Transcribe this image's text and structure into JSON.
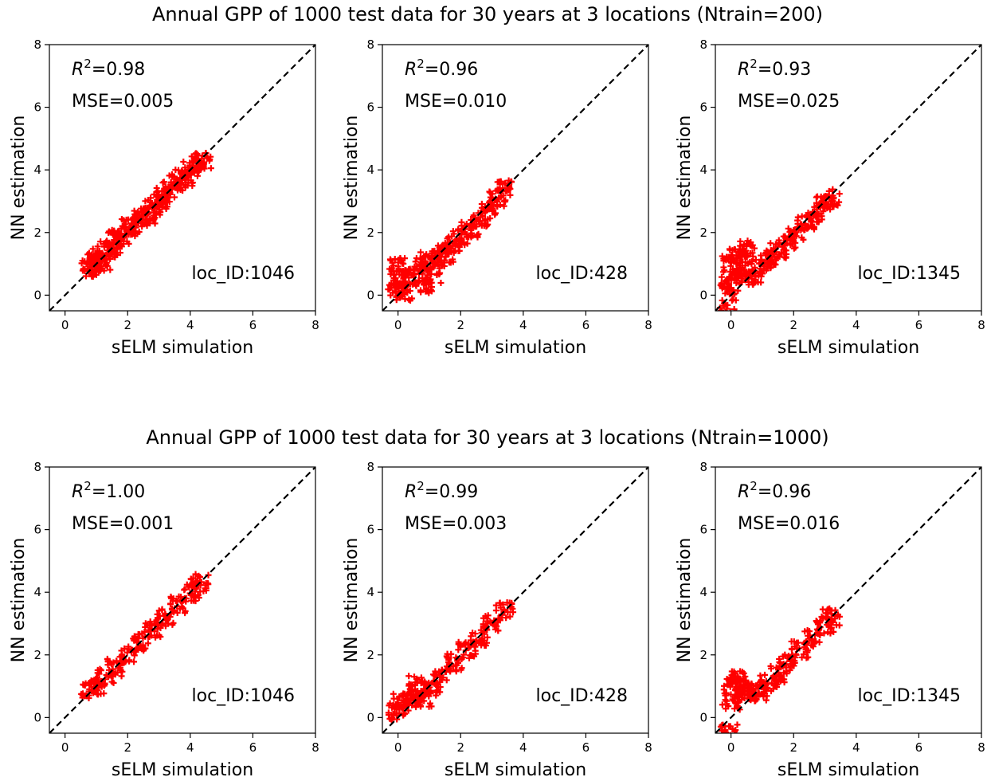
{
  "figure": {
    "titles": [
      "Annual GPP of 1000 test data for 30 years at 3 locations (Ntrain=200)",
      "Annual GPP of 1000 test data for 30 years at 3 locations (Ntrain=1000)"
    ]
  },
  "chart_data": [
    {
      "type": "scatter",
      "row": 0,
      "col": 0,
      "xlabel": "sELM simulation",
      "ylabel": "NN estimation",
      "xlim": [
        -0.5,
        8
      ],
      "ylim": [
        -0.5,
        8
      ],
      "xticks": [
        0,
        2,
        4,
        6,
        8
      ],
      "yticks": [
        0,
        2,
        4,
        6,
        8
      ],
      "r2": "=0.98",
      "mse": "MSE=0.005",
      "location": "loc_ID:1046",
      "marker_color": "#ff0000",
      "identity_line": true,
      "points": [
        [
          0.75,
          1.0
        ],
        [
          0.9,
          0.85
        ],
        [
          1.0,
          1.2
        ],
        [
          1.2,
          1.05
        ],
        [
          1.3,
          1.5
        ],
        [
          1.5,
          1.45
        ],
        [
          1.6,
          1.8
        ],
        [
          1.8,
          1.8
        ],
        [
          2.0,
          2.15
        ],
        [
          2.2,
          2.2
        ],
        [
          2.4,
          2.5
        ],
        [
          2.6,
          2.55
        ],
        [
          2.8,
          2.8
        ],
        [
          3.0,
          2.95
        ],
        [
          3.2,
          3.2
        ],
        [
          3.4,
          3.35
        ],
        [
          3.6,
          3.6
        ],
        [
          3.8,
          3.75
        ],
        [
          4.0,
          4.0
        ],
        [
          4.2,
          4.15
        ],
        [
          4.4,
          4.3
        ]
      ]
    },
    {
      "type": "scatter",
      "row": 0,
      "col": 1,
      "xlabel": "sELM simulation",
      "ylabel": "NN estimation",
      "xlim": [
        -0.5,
        8
      ],
      "ylim": [
        -0.5,
        8
      ],
      "xticks": [
        0,
        2,
        4,
        6,
        8
      ],
      "yticks": [
        0,
        2,
        4,
        6,
        8
      ],
      "r2": "=0.96",
      "mse": "MSE=0.010",
      "location": "loc_ID:428",
      "marker_color": "#ff0000",
      "identity_line": true,
      "points": [
        [
          -0.05,
          0.2
        ],
        [
          0.0,
          0.9
        ],
        [
          0.05,
          0.5
        ],
        [
          0.2,
          0.1
        ],
        [
          0.4,
          0.6
        ],
        [
          0.6,
          0.9
        ],
        [
          0.8,
          0.3
        ],
        [
          1.0,
          1.1
        ],
        [
          1.1,
          0.6
        ],
        [
          1.3,
          1.2
        ],
        [
          1.5,
          1.3
        ],
        [
          1.7,
          1.6
        ],
        [
          2.0,
          1.85
        ],
        [
          2.3,
          2.1
        ],
        [
          2.6,
          2.4
        ],
        [
          2.9,
          2.7
        ],
        [
          3.2,
          3.1
        ],
        [
          3.4,
          3.4
        ]
      ]
    },
    {
      "type": "scatter",
      "row": 0,
      "col": 2,
      "xlabel": "sELM simulation",
      "ylabel": "NN estimation",
      "xlim": [
        -0.5,
        8
      ],
      "ylim": [
        -0.5,
        8
      ],
      "xticks": [
        0,
        2,
        4,
        6,
        8
      ],
      "yticks": [
        0,
        2,
        4,
        6,
        8
      ],
      "r2": "=0.93",
      "mse": "MSE=0.025",
      "location": "loc_ID:1345",
      "marker_color": "#ff0000",
      "identity_line": true,
      "points": [
        [
          -0.1,
          -0.4
        ],
        [
          -0.05,
          0.3
        ],
        [
          0.0,
          1.0
        ],
        [
          0.1,
          0.6
        ],
        [
          0.2,
          1.2
        ],
        [
          0.4,
          0.8
        ],
        [
          0.5,
          1.5
        ],
        [
          0.7,
          0.6
        ],
        [
          1.0,
          0.9
        ],
        [
          1.2,
          1.2
        ],
        [
          1.5,
          1.45
        ],
        [
          1.8,
          1.75
        ],
        [
          2.1,
          2.0
        ],
        [
          2.4,
          2.35
        ],
        [
          2.7,
          2.6
        ],
        [
          3.0,
          2.9
        ],
        [
          3.2,
          3.1
        ]
      ]
    },
    {
      "type": "scatter",
      "row": 1,
      "col": 0,
      "xlabel": "sELM simulation",
      "ylabel": "NN estimation",
      "xlim": [
        -0.5,
        8
      ],
      "ylim": [
        -0.5,
        8
      ],
      "xticks": [
        0,
        2,
        4,
        6,
        8
      ],
      "yticks": [
        0,
        2,
        4,
        6,
        8
      ],
      "r2": "=1.00",
      "mse": "MSE=0.001",
      "location": "loc_ID:1046",
      "marker_color": "#ff0000",
      "identity_line": true,
      "points": [
        [
          0.75,
          0.85
        ],
        [
          1.0,
          1.0
        ],
        [
          1.3,
          1.3
        ],
        [
          1.6,
          1.6
        ],
        [
          2.0,
          2.0
        ],
        [
          2.4,
          2.4
        ],
        [
          2.8,
          2.8
        ],
        [
          3.2,
          3.2
        ],
        [
          3.6,
          3.6
        ],
        [
          4.0,
          4.0
        ],
        [
          4.3,
          4.3
        ]
      ]
    },
    {
      "type": "scatter",
      "row": 1,
      "col": 1,
      "xlabel": "sELM simulation",
      "ylabel": "NN estimation",
      "xlim": [
        -0.5,
        8
      ],
      "ylim": [
        -0.5,
        8
      ],
      "xticks": [
        0,
        2,
        4,
        6,
        8
      ],
      "yticks": [
        0,
        2,
        4,
        6,
        8
      ],
      "r2": "=0.99",
      "mse": "MSE=0.003",
      "location": "loc_ID:428",
      "marker_color": "#ff0000",
      "identity_line": true,
      "points": [
        [
          -0.05,
          0.2
        ],
        [
          0.1,
          0.5
        ],
        [
          0.4,
          0.6
        ],
        [
          0.6,
          1.1
        ],
        [
          0.8,
          0.6
        ],
        [
          1.1,
          0.9
        ],
        [
          1.4,
          1.3
        ],
        [
          1.8,
          1.75
        ],
        [
          2.2,
          2.15
        ],
        [
          2.6,
          2.55
        ],
        [
          3.0,
          3.0
        ],
        [
          3.4,
          3.4
        ]
      ]
    },
    {
      "type": "scatter",
      "row": 1,
      "col": 2,
      "xlabel": "sELM simulation",
      "ylabel": "NN estimation",
      "xlim": [
        -0.5,
        8
      ],
      "ylim": [
        -0.5,
        8
      ],
      "xticks": [
        0,
        2,
        4,
        6,
        8
      ],
      "yticks": [
        0,
        2,
        4,
        6,
        8
      ],
      "r2": "=0.96",
      "mse": "MSE=0.016",
      "location": "loc_ID:1345",
      "marker_color": "#ff0000",
      "identity_line": true,
      "points": [
        [
          -0.05,
          -0.45
        ],
        [
          0.0,
          0.5
        ],
        [
          0.05,
          1.0
        ],
        [
          0.2,
          1.2
        ],
        [
          0.4,
          0.9
        ],
        [
          0.6,
          0.8
        ],
        [
          0.9,
          0.8
        ],
        [
          1.2,
          1.1
        ],
        [
          1.5,
          1.4
        ],
        [
          1.8,
          1.75
        ],
        [
          2.2,
          2.15
        ],
        [
          2.6,
          2.55
        ],
        [
          3.0,
          2.95
        ],
        [
          3.2,
          3.2
        ]
      ]
    }
  ]
}
